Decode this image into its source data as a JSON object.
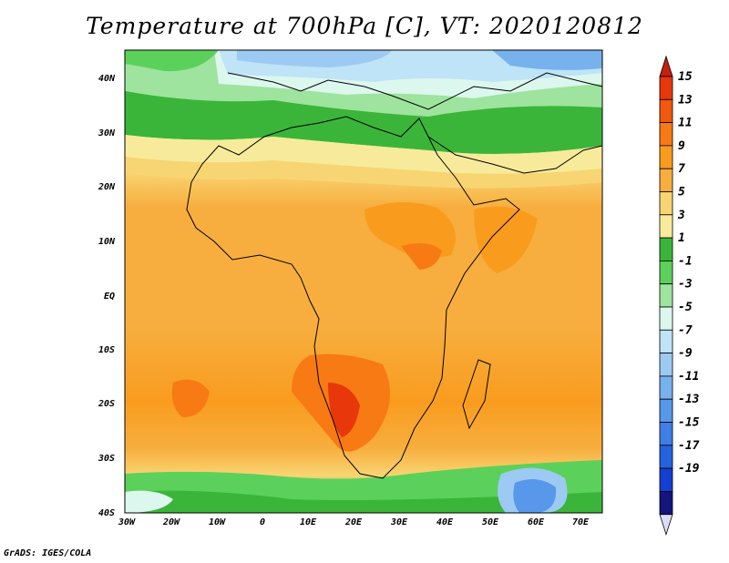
{
  "title": "Temperature at 700hPa [C], VT: 2020120812",
  "credit": "GrADS: IGES/COLA",
  "map": {
    "lat_labels": [
      "40N",
      "30N",
      "20N",
      "10N",
      "EQ",
      "10S",
      "20S",
      "30S",
      "40S"
    ],
    "lon_labels": [
      "30W",
      "20W",
      "10W",
      "0",
      "10E",
      "20E",
      "30E",
      "40E",
      "50E",
      "60E",
      "70E"
    ]
  },
  "colorbar": {
    "labels": [
      "15",
      "13",
      "11",
      "9",
      "7",
      "5",
      "3",
      "1",
      "-1",
      "-3",
      "-5",
      "-7",
      "-9",
      "-11",
      "-13",
      "-15",
      "-17",
      "-19"
    ],
    "colors": [
      "#e8370b",
      "#f2580f",
      "#f77a14",
      "#f99c1e",
      "#f7ae3e",
      "#f8d573",
      "#f7eb9b",
      "#3ab53a",
      "#5bd15b",
      "#9ee39e",
      "#dcf7ee",
      "#bfe3f7",
      "#9ccaf2",
      "#77b1ee",
      "#5898ea",
      "#3f7ee6",
      "#2462e0",
      "#1340d2",
      "#13157c"
    ],
    "top_color": "#c81e0e",
    "bottom_color": "#dcdcf7"
  }
}
